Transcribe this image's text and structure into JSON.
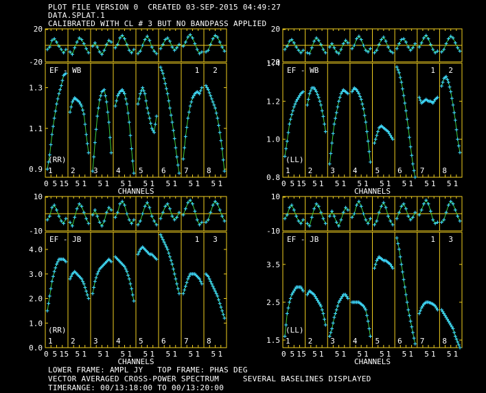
{
  "header": {
    "line1": "PLOT FILE VERSION 0  CREATED 03-SEP-2015 04:49:27",
    "line2": "DATA.SPLAT.1",
    "line3": "CALIBRATED WITH CL # 3 BUT NO BANDPASS APPLIED"
  },
  "footer": {
    "line1": "LOWER FRAME: AMPL JY   TOP FRAME: PHAS DEG",
    "line2": "VECTOR AVERAGED CROSS-POWER SPECTRUM     SEVERAL BASELINES DISPLAYED",
    "line3": "TIMERANGE: 00/13:18:00 TO 00/13:20:00"
  },
  "colors": {
    "frame": "#f2d020",
    "points": "#3fd8ff",
    "model": "#3ccf3c",
    "text": "#ffffff",
    "background": "#000000"
  },
  "chart_data": [
    {
      "type": "line",
      "antenna": "EF - WB",
      "polarization": "(RR)",
      "xlabel": "CHANNELS",
      "x_tick_labels": [
        "0",
        "5",
        "10",
        "15"
      ],
      "phase_ylabels": [
        "20",
        "-20"
      ],
      "phase_ylim": [
        -20,
        20
      ],
      "amp_ylabels": [
        "1.3",
        "1.1",
        "0.9"
      ],
      "amp_ylim": [
        0.86,
        1.42
      ],
      "panel_labels": [
        "1",
        "2",
        "3",
        "4",
        "5",
        "6",
        "7",
        "8"
      ],
      "top_labels": [
        "1",
        "2"
      ],
      "phase": [
        [
          -5,
          -2,
          6,
          8,
          4,
          -1,
          -5,
          -9,
          -5
        ],
        [
          -8,
          -11,
          -3,
          4,
          9,
          7,
          2,
          -4,
          -9
        ],
        [
          -1,
          3,
          -2,
          -8,
          -11,
          -6,
          1,
          6,
          4
        ],
        [
          -3,
          1,
          9,
          12,
          8,
          1,
          -6,
          -9,
          -5
        ],
        [
          -10,
          -7,
          0,
          7,
          11,
          6,
          -2,
          -7,
          -10
        ],
        [
          -4,
          1,
          7,
          9,
          5,
          -2,
          -6,
          -3,
          1
        ],
        [
          -1,
          4,
          10,
          13,
          9,
          2,
          -5,
          -10,
          -8
        ],
        [
          -8,
          -6,
          1,
          8,
          12,
          10,
          4,
          -2,
          -7
        ]
      ],
      "amp": [
        [
          0.9,
          0.97,
          1.07,
          1.15,
          1.22,
          1.27,
          1.31,
          1.36,
          1.37
        ],
        [
          1.18,
          1.23,
          1.25,
          1.24,
          1.23,
          1.21,
          1.17,
          1.07,
          0.98
        ],
        [
          0.89,
          1.03,
          1.16,
          1.24,
          1.28,
          1.29,
          1.23,
          1.13,
          0.98
        ],
        [
          1.21,
          1.26,
          1.28,
          1.29,
          1.27,
          1.22,
          1.13,
          1.0,
          0.88
        ],
        [
          1.22,
          1.27,
          1.3,
          1.27,
          1.2,
          1.15,
          1.1,
          1.08,
          1.16
        ],
        [
          1.4,
          1.37,
          1.32,
          1.27,
          1.2,
          1.13,
          1.05,
          0.96,
          0.88
        ],
        [
          0.95,
          1.06,
          1.15,
          1.21,
          1.25,
          1.27,
          1.28,
          1.27,
          1.3
        ],
        [
          1.31,
          1.29,
          1.26,
          1.23,
          1.2,
          1.15,
          1.08,
          1.0,
          0.89
        ]
      ]
    },
    {
      "type": "line",
      "antenna": "EF - WB",
      "polarization": "(LL)",
      "xlabel": "CHANNELS",
      "x_tick_labels": [
        "0",
        "5",
        "10",
        "15"
      ],
      "phase_ylabels": [
        "20",
        "-20"
      ],
      "phase_ylim": [
        -20,
        20
      ],
      "amp_ylabels": [
        "1.4",
        "1.2",
        "1.0",
        "0.8"
      ],
      "amp_ylim": [
        0.8,
        1.4
      ],
      "panel_labels": [
        "1",
        "2",
        "3",
        "4",
        "5",
        "6",
        "7",
        "8"
      ],
      "top_labels": [
        "1",
        "2"
      ],
      "phase": [
        [
          -5,
          -1,
          5,
          7,
          3,
          -2,
          -6,
          -9,
          -6
        ],
        [
          -9,
          -10,
          -3,
          5,
          9,
          6,
          1,
          -5,
          -9
        ],
        [
          -2,
          2,
          -3,
          -8,
          -10,
          -5,
          2,
          6,
          3
        ],
        [
          -4,
          0,
          8,
          11,
          7,
          0,
          -6,
          -8,
          -4
        ],
        [
          -9,
          -6,
          1,
          7,
          10,
          5,
          -2,
          -7,
          -9
        ],
        [
          -4,
          2,
          7,
          8,
          4,
          -2,
          -6,
          -3,
          2
        ],
        [
          -2,
          3,
          9,
          12,
          8,
          1,
          -5,
          -9,
          -7
        ],
        [
          -8,
          -5,
          2,
          8,
          11,
          9,
          3,
          -3,
          -7
        ]
      ],
      "amp": [
        [
          0.91,
          0.99,
          1.08,
          1.13,
          1.17,
          1.2,
          1.22,
          1.24,
          1.25
        ],
        [
          1.18,
          1.24,
          1.27,
          1.27,
          1.25,
          1.22,
          1.18,
          1.12,
          1.04
        ],
        [
          0.87,
          0.98,
          1.08,
          1.14,
          1.2,
          1.24,
          1.26,
          1.25,
          1.24
        ],
        [
          1.25,
          1.27,
          1.26,
          1.24,
          1.21,
          1.16,
          1.09,
          0.99,
          0.88
        ],
        [
          0.98,
          1.02,
          1.06,
          1.07,
          1.06,
          1.05,
          1.04,
          1.02,
          1.0
        ],
        [
          1.38,
          1.35,
          1.3,
          1.23,
          1.15,
          1.06,
          0.96,
          0.87,
          0.8
        ],
        [
          1.22,
          1.19,
          1.2,
          1.21,
          1.2,
          1.2,
          1.19,
          1.21,
          1.22
        ],
        [
          1.28,
          1.32,
          1.33,
          1.3,
          1.25,
          1.18,
          1.1,
          1.0,
          0.93
        ]
      ]
    },
    {
      "type": "line",
      "antenna": "EF - JB",
      "polarization": "(RR)",
      "xlabel": "CHANNELS",
      "x_tick_labels": [
        "0",
        "5",
        "10",
        "15"
      ],
      "phase_ylabels": [
        "10",
        "-10"
      ],
      "phase_ylim": [
        -14,
        14
      ],
      "amp_ylabels": [
        "4.0",
        "3.0",
        "2.0",
        "1.0",
        "0.0"
      ],
      "amp_ylim": [
        0.0,
        4.7
      ],
      "panel_labels": [
        "1",
        "2",
        "3",
        "4",
        "5",
        "6",
        "7",
        "8"
      ],
      "top_labels": [
        "1",
        "3"
      ],
      "phase": [
        [
          -5,
          -2,
          5,
          7,
          3,
          -2,
          -6,
          -8,
          -4
        ],
        [
          -7,
          -10,
          -3,
          4,
          8,
          6,
          1,
          -4,
          -8
        ],
        [
          -1,
          3,
          -2,
          -7,
          -10,
          -6,
          1,
          5,
          3
        ],
        [
          -3,
          1,
          8,
          10,
          7,
          0,
          -5,
          -8,
          -5
        ],
        [
          -9,
          -6,
          0,
          6,
          9,
          5,
          -2,
          -6,
          -9
        ],
        [
          -4,
          1,
          6,
          8,
          4,
          -2,
          -5,
          -3,
          1
        ],
        [
          -1,
          4,
          9,
          11,
          8,
          2,
          -5,
          -9,
          -7
        ],
        [
          -7,
          -5,
          1,
          7,
          10,
          8,
          3,
          -2,
          -6
        ]
      ],
      "amp": [
        [
          1.5,
          2.1,
          2.7,
          3.1,
          3.4,
          3.6,
          3.6,
          3.6,
          3.5
        ],
        [
          2.8,
          3.0,
          3.1,
          3.0,
          2.9,
          2.8,
          2.6,
          2.3,
          2.0
        ],
        [
          2.2,
          2.7,
          3.0,
          3.2,
          3.3,
          3.4,
          3.5,
          3.6,
          3.5
        ],
        [
          3.7,
          3.6,
          3.5,
          3.4,
          3.3,
          3.1,
          2.8,
          2.4,
          1.9
        ],
        [
          3.8,
          4.0,
          4.1,
          4.0,
          3.9,
          3.8,
          3.8,
          3.7,
          3.6
        ],
        [
          4.6,
          4.4,
          4.2,
          4.0,
          3.7,
          3.4,
          3.0,
          2.6,
          2.2
        ],
        [
          2.2,
          2.5,
          2.8,
          3.0,
          3.0,
          3.0,
          2.9,
          2.8,
          2.6
        ],
        [
          3.0,
          2.9,
          2.7,
          2.5,
          2.3,
          2.1,
          1.8,
          1.5,
          1.2
        ]
      ]
    },
    {
      "type": "line",
      "antenna": "EF - JB",
      "polarization": "(LL)",
      "xlabel": "CHANNELS",
      "x_tick_labels": [
        "0",
        "5",
        "10",
        "15"
      ],
      "phase_ylabels": [
        "10",
        "-10"
      ],
      "phase_ylim": [
        -14,
        14
      ],
      "amp_ylabels": [
        "3.5",
        "2.5",
        "1.5"
      ],
      "amp_ylim": [
        1.3,
        4.35
      ],
      "panel_labels": [
        "1",
        "2",
        "3",
        "4",
        "5",
        "6",
        "7",
        "8"
      ],
      "top_labels": [
        "1",
        "3"
      ],
      "phase": [
        [
          -4,
          -1,
          5,
          7,
          3,
          -2,
          -6,
          -8,
          -5
        ],
        [
          -8,
          -10,
          -3,
          4,
          8,
          6,
          1,
          -4,
          -8
        ],
        [
          -2,
          2,
          -2,
          -7,
          -10,
          -5,
          1,
          5,
          3
        ],
        [
          -3,
          0,
          7,
          10,
          6,
          0,
          -5,
          -8,
          -4
        ],
        [
          -9,
          -6,
          1,
          6,
          9,
          5,
          -2,
          -6,
          -9
        ],
        [
          -4,
          1,
          6,
          8,
          4,
          -2,
          -5,
          -3,
          1
        ],
        [
          -1,
          3,
          8,
          11,
          8,
          2,
          -5,
          -8,
          -7
        ],
        [
          -7,
          -5,
          1,
          7,
          10,
          8,
          3,
          -2,
          -6
        ]
      ],
      "amp": [
        [
          1.6,
          2.2,
          2.5,
          2.7,
          2.8,
          2.9,
          2.9,
          2.9,
          2.8
        ],
        [
          2.7,
          2.8,
          2.75,
          2.7,
          2.6,
          2.5,
          2.4,
          2.2,
          1.9
        ],
        [
          1.6,
          1.8,
          2.1,
          2.3,
          2.5,
          2.6,
          2.7,
          2.7,
          2.6
        ],
        [
          2.5,
          2.5,
          2.5,
          2.5,
          2.45,
          2.4,
          2.3,
          2.0,
          1.6
        ],
        [
          3.4,
          3.6,
          3.7,
          3.65,
          3.6,
          3.6,
          3.55,
          3.5,
          3.4
        ],
        [
          4.2,
          3.9,
          3.5,
          3.1,
          2.7,
          2.3,
          2.0,
          1.7,
          1.4
        ],
        [
          2.2,
          2.35,
          2.45,
          2.5,
          2.5,
          2.48,
          2.45,
          2.4,
          2.3
        ],
        [
          2.3,
          2.2,
          2.1,
          2.0,
          1.9,
          1.8,
          1.6,
          1.45,
          1.3
        ]
      ]
    }
  ]
}
